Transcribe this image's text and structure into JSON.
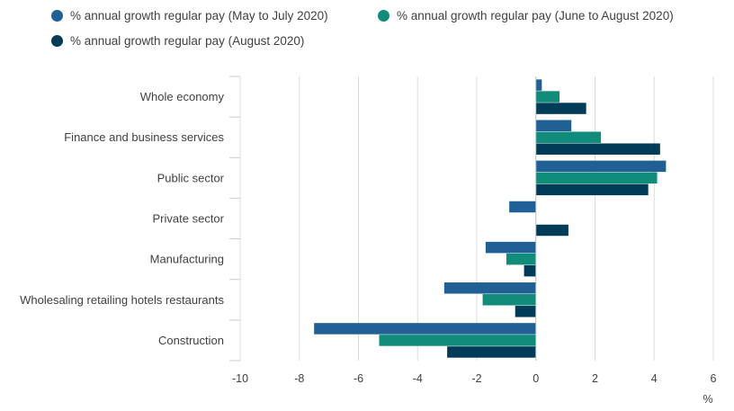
{
  "chart_data": {
    "type": "bar",
    "orientation": "horizontal",
    "categories": [
      "Whole economy",
      "Finance and business services",
      "Public sector",
      "Private sector",
      "Manufacturing",
      "Wholesaling retailing hotels restaurants",
      "Construction"
    ],
    "series": [
      {
        "name": "% annual growth regular pay (May to July 2020)",
        "color": "#206095",
        "values": [
          0.2,
          1.2,
          4.4,
          -0.9,
          -1.7,
          -3.1,
          -7.5
        ]
      },
      {
        "name": "% annual growth regular pay (June to August 2020)",
        "color": "#118c7b",
        "values": [
          0.8,
          2.2,
          4.1,
          0.0,
          -1.0,
          -1.8,
          -5.3
        ]
      },
      {
        "name": "% annual growth regular pay (August 2020)",
        "color": "#003c57",
        "values": [
          1.7,
          4.2,
          3.8,
          1.1,
          -0.4,
          -0.7,
          -3.0
        ]
      }
    ],
    "xlim": [
      -10,
      6
    ],
    "xticks": [
      -10,
      -8,
      -6,
      -4,
      -2,
      0,
      2,
      4,
      6
    ],
    "xlabel": "%",
    "grid": true,
    "legend_position": "top-left"
  }
}
